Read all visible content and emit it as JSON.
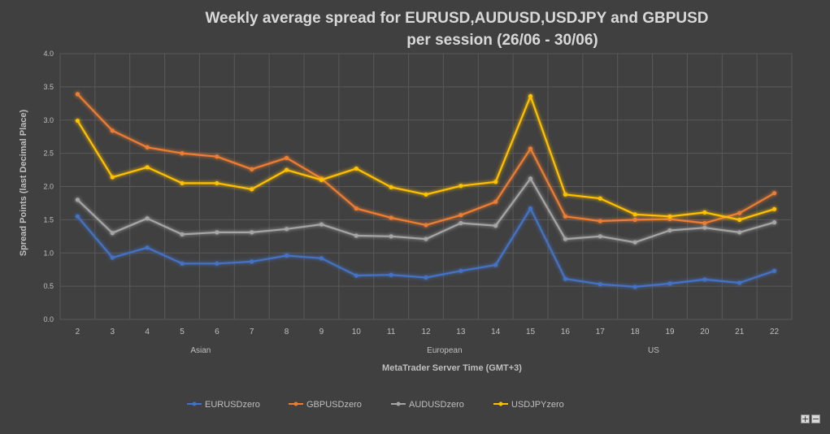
{
  "controls": {
    "zoom_in": "+",
    "zoom_out": "−"
  },
  "chart_data": {
    "type": "line",
    "title_line1": "Weekly average spread for EURUSD,AUDUSD,USDJPY and GBPUSD",
    "title_line2": "per session (26/06 - 30/06)",
    "xlabel": "MetaTrader Server Time (GMT+3)",
    "ylabel": "Spread Points  (last Decimal Place)",
    "ylim": [
      0,
      4
    ],
    "yticks": [
      "0.0",
      "0.5",
      "1.0",
      "1.5",
      "2.0",
      "2.5",
      "3.0",
      "3.5",
      "4.0"
    ],
    "categories": [
      "2",
      "3",
      "4",
      "5",
      "6",
      "7",
      "8",
      "9",
      "10",
      "11",
      "12",
      "13",
      "14",
      "15",
      "16",
      "17",
      "18",
      "19",
      "20",
      "21",
      "22"
    ],
    "sessions": [
      {
        "label": "Asian",
        "at_category": "6"
      },
      {
        "label": "European",
        "at_category": "13"
      },
      {
        "label": "US",
        "at_category": "19"
      }
    ],
    "grid": true,
    "legend_position": "bottom",
    "series": [
      {
        "name": "EURUSDzero",
        "color": "#4472c4",
        "values": [
          1.55,
          0.93,
          1.08,
          0.84,
          0.84,
          0.87,
          0.96,
          0.92,
          0.66,
          0.67,
          0.63,
          0.73,
          0.82,
          1.67,
          0.61,
          0.53,
          0.49,
          0.54,
          0.6,
          0.55,
          0.73
        ]
      },
      {
        "name": "GBPUSDzero",
        "color": "#ed7d31",
        "values": [
          3.39,
          2.84,
          2.59,
          2.5,
          2.45,
          2.26,
          2.43,
          2.12,
          1.67,
          1.53,
          1.42,
          1.57,
          1.77,
          2.57,
          1.55,
          1.48,
          1.5,
          1.51,
          1.45,
          1.6,
          1.9
        ]
      },
      {
        "name": "AUDUSDzero",
        "color": "#a5a5a5",
        "values": [
          1.8,
          1.3,
          1.52,
          1.28,
          1.31,
          1.31,
          1.36,
          1.43,
          1.26,
          1.25,
          1.21,
          1.45,
          1.41,
          2.12,
          1.21,
          1.25,
          1.16,
          1.34,
          1.38,
          1.31,
          1.46
        ]
      },
      {
        "name": "USDJPYzero",
        "color": "#ffc000",
        "values": [
          2.99,
          2.14,
          2.29,
          2.05,
          2.05,
          1.96,
          2.25,
          2.1,
          2.27,
          1.99,
          1.88,
          2.01,
          2.07,
          3.36,
          1.88,
          1.82,
          1.58,
          1.55,
          1.61,
          1.5,
          1.66
        ]
      }
    ]
  }
}
